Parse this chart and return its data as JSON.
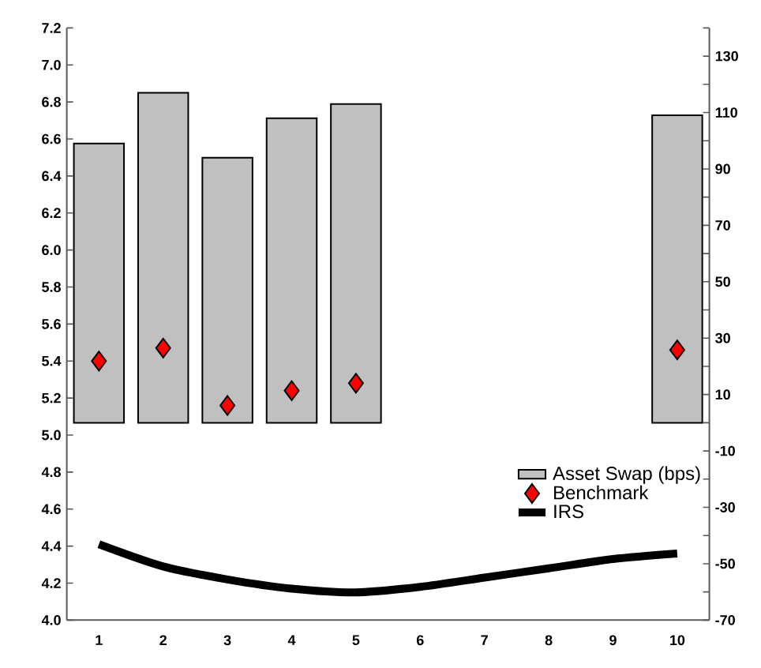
{
  "chart_data": {
    "type": "bar",
    "categories": [
      "1",
      "2",
      "3",
      "4",
      "5",
      "6",
      "7",
      "8",
      "9",
      "10"
    ],
    "series": [
      {
        "name": "Asset Swap (bps)",
        "axis": "y2",
        "color": "#c0c0c0",
        "values": [
          99,
          117,
          94,
          108,
          113,
          null,
          null,
          null,
          null,
          109
        ]
      },
      {
        "name": "Benchmark",
        "type": "scatter",
        "marker": "diamond",
        "color": "#ff0000",
        "values": [
          5.4,
          5.47,
          5.16,
          5.24,
          5.28,
          null,
          null,
          null,
          null,
          5.46
        ]
      },
      {
        "name": "IRS",
        "type": "line",
        "line_style": "solid",
        "color": "#000000",
        "values": [
          4.41,
          4.29,
          4.22,
          4.17,
          4.15,
          4.18,
          4.23,
          4.28,
          4.33,
          4.36
        ]
      }
    ],
    "ylim": [
      4.0,
      7.2
    ],
    "yticks": [
      {
        "value": 4.0,
        "label": "4.0"
      },
      {
        "value": 4.2,
        "label": "4.2"
      },
      {
        "value": 4.4,
        "label": "4.4"
      },
      {
        "value": 4.6,
        "label": "4.6"
      },
      {
        "value": 4.8,
        "label": "4.8"
      },
      {
        "value": 5.0,
        "label": "5.0"
      },
      {
        "value": 5.2,
        "label": "5.2"
      },
      {
        "value": 5.4,
        "label": "5.4"
      },
      {
        "value": 5.6,
        "label": "5.6"
      },
      {
        "value": 5.8,
        "label": "5.8"
      },
      {
        "value": 6.0,
        "label": "6.0"
      },
      {
        "value": 6.2,
        "label": "6.2"
      },
      {
        "value": 6.4,
        "label": "6.4"
      },
      {
        "value": 6.6,
        "label": "6.6"
      },
      {
        "value": 6.8,
        "label": "6.8"
      },
      {
        "value": 7.0,
        "label": "7.0"
      },
      {
        "value": 7.2,
        "label": "7.2"
      }
    ],
    "y2lim": [
      -70,
      140
    ],
    "y2ticks": [
      -70,
      {
        "value": -60,
        "label": null
      },
      -50,
      {
        "value": -40,
        "label": null
      },
      -30,
      {
        "value": -20,
        "label": null
      },
      -10,
      {
        "value": 0,
        "label": null
      },
      10,
      {
        "value": 20,
        "label": null
      },
      30,
      {
        "value": 40,
        "label": null
      },
      50,
      {
        "value": 60,
        "label": null
      },
      70,
      {
        "value": 80,
        "label": null
      },
      90,
      {
        "value": 100,
        "label": null
      },
      110,
      {
        "value": 120,
        "label": null
      },
      130,
      {
        "value": 140,
        "label": null
      }
    ],
    "grid": false,
    "legend": "bottom right"
  }
}
